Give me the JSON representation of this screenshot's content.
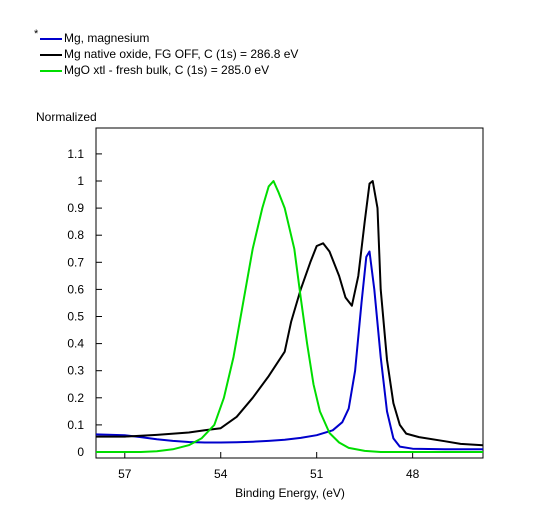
{
  "chart_data": {
    "type": "line",
    "legend_marker": "*",
    "legend_position": "top-left",
    "ylabel": "Normalized",
    "xlabel": "Binding Energy, (eV)",
    "x_reversed": true,
    "xlim": [
      57.9,
      45.8
    ],
    "ylim": [
      0,
      1.2
    ],
    "x_ticks": [
      {
        "value": 57,
        "label": "57"
      },
      {
        "value": 54,
        "label": "54"
      },
      {
        "value": 51,
        "label": "51"
      },
      {
        "value": 48,
        "label": "48"
      }
    ],
    "y_ticks": [
      {
        "value": 0,
        "label": "0"
      },
      {
        "value": 0.1,
        "label": "0.1"
      },
      {
        "value": 0.2,
        "label": "0.2"
      },
      {
        "value": 0.3,
        "label": "0.3"
      },
      {
        "value": 0.4,
        "label": "0.4"
      },
      {
        "value": 0.5,
        "label": "0.5"
      },
      {
        "value": 0.6,
        "label": "0.6"
      },
      {
        "value": 0.7,
        "label": "0.7"
      },
      {
        "value": 0.8,
        "label": "0.8"
      },
      {
        "value": 0.9,
        "label": "0.9"
      },
      {
        "value": 1,
        "label": "1"
      },
      {
        "value": 1.1,
        "label": "1.1"
      }
    ],
    "series": [
      {
        "name": "Mg, magnesium",
        "color": "#0000cc",
        "points": [
          [
            57.9,
            0.065
          ],
          [
            57.0,
            0.062
          ],
          [
            56.5,
            0.055
          ],
          [
            56.0,
            0.047
          ],
          [
            55.5,
            0.041
          ],
          [
            55.0,
            0.037
          ],
          [
            54.5,
            0.035
          ],
          [
            54.0,
            0.035
          ],
          [
            53.5,
            0.036
          ],
          [
            53.0,
            0.038
          ],
          [
            52.5,
            0.041
          ],
          [
            52.0,
            0.045
          ],
          [
            51.5,
            0.052
          ],
          [
            51.0,
            0.062
          ],
          [
            50.5,
            0.08
          ],
          [
            50.2,
            0.11
          ],
          [
            50.0,
            0.16
          ],
          [
            49.8,
            0.3
          ],
          [
            49.6,
            0.55
          ],
          [
            49.45,
            0.72
          ],
          [
            49.35,
            0.74
          ],
          [
            49.2,
            0.6
          ],
          [
            49.0,
            0.35
          ],
          [
            48.8,
            0.15
          ],
          [
            48.6,
            0.05
          ],
          [
            48.4,
            0.02
          ],
          [
            48.0,
            0.012
          ],
          [
            47.0,
            0.01
          ],
          [
            45.8,
            0.01
          ]
        ]
      },
      {
        "name": "Mg native oxide, FG OFF, C (1s) = 286.8 eV",
        "color": "#000000",
        "points": [
          [
            57.9,
            0.057
          ],
          [
            57.0,
            0.057
          ],
          [
            56.0,
            0.063
          ],
          [
            55.0,
            0.072
          ],
          [
            54.5,
            0.08
          ],
          [
            54.0,
            0.088
          ],
          [
            53.5,
            0.13
          ],
          [
            53.0,
            0.2
          ],
          [
            52.5,
            0.28
          ],
          [
            52.0,
            0.37
          ],
          [
            51.8,
            0.48
          ],
          [
            51.5,
            0.6
          ],
          [
            51.2,
            0.7
          ],
          [
            51.0,
            0.76
          ],
          [
            50.8,
            0.77
          ],
          [
            50.6,
            0.74
          ],
          [
            50.3,
            0.65
          ],
          [
            50.1,
            0.57
          ],
          [
            49.9,
            0.54
          ],
          [
            49.7,
            0.65
          ],
          [
            49.5,
            0.85
          ],
          [
            49.35,
            0.99
          ],
          [
            49.25,
            1.0
          ],
          [
            49.1,
            0.9
          ],
          [
            49.0,
            0.6
          ],
          [
            48.8,
            0.34
          ],
          [
            48.6,
            0.18
          ],
          [
            48.4,
            0.1
          ],
          [
            48.2,
            0.068
          ],
          [
            47.8,
            0.055
          ],
          [
            47.0,
            0.04
          ],
          [
            46.5,
            0.03
          ],
          [
            45.8,
            0.025
          ]
        ]
      },
      {
        "name": "MgO xtl - fresh bulk, C (1s) = 285.0 eV",
        "color": "#00dd00",
        "points": [
          [
            57.9,
            0.0
          ],
          [
            56.5,
            0.0
          ],
          [
            56.0,
            0.003
          ],
          [
            55.5,
            0.01
          ],
          [
            55.0,
            0.025
          ],
          [
            54.6,
            0.05
          ],
          [
            54.2,
            0.1
          ],
          [
            53.9,
            0.2
          ],
          [
            53.6,
            0.35
          ],
          [
            53.3,
            0.55
          ],
          [
            53.0,
            0.75
          ],
          [
            52.7,
            0.9
          ],
          [
            52.5,
            0.98
          ],
          [
            52.35,
            1.0
          ],
          [
            52.2,
            0.96
          ],
          [
            52.0,
            0.9
          ],
          [
            51.7,
            0.75
          ],
          [
            51.5,
            0.57
          ],
          [
            51.3,
            0.4
          ],
          [
            51.1,
            0.25
          ],
          [
            50.9,
            0.15
          ],
          [
            50.6,
            0.07
          ],
          [
            50.3,
            0.035
          ],
          [
            50.0,
            0.015
          ],
          [
            49.5,
            0.004
          ],
          [
            49.0,
            0.0
          ],
          [
            45.8,
            0.0
          ]
        ]
      }
    ]
  }
}
